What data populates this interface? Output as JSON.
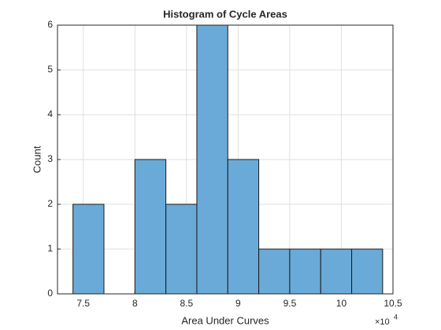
{
  "chart_data": {
    "type": "histogram",
    "title": "Histogram of Cycle Areas",
    "x_label": "Area Under Curves",
    "y_label": "Count",
    "x_exponent": {
      "base": "×10",
      "power": "4"
    },
    "bins": [
      7.4,
      7.7,
      8.0,
      8.3,
      8.6,
      8.9,
      9.2,
      9.5,
      9.8,
      10.1,
      10.4
    ],
    "values": [
      2,
      0,
      3,
      2,
      6,
      3,
      1,
      1,
      1,
      1
    ],
    "color": "#6aaad8",
    "edge_color": "#1a1a1a",
    "xlim": [
      7.25,
      10.5
    ],
    "xticks": [
      7.5,
      8,
      8.5,
      9,
      9.5,
      10,
      10.5
    ],
    "ylim": [
      0,
      6
    ],
    "yticks": [
      0,
      1,
      2,
      3,
      4,
      5,
      6
    ],
    "grid": true
  }
}
